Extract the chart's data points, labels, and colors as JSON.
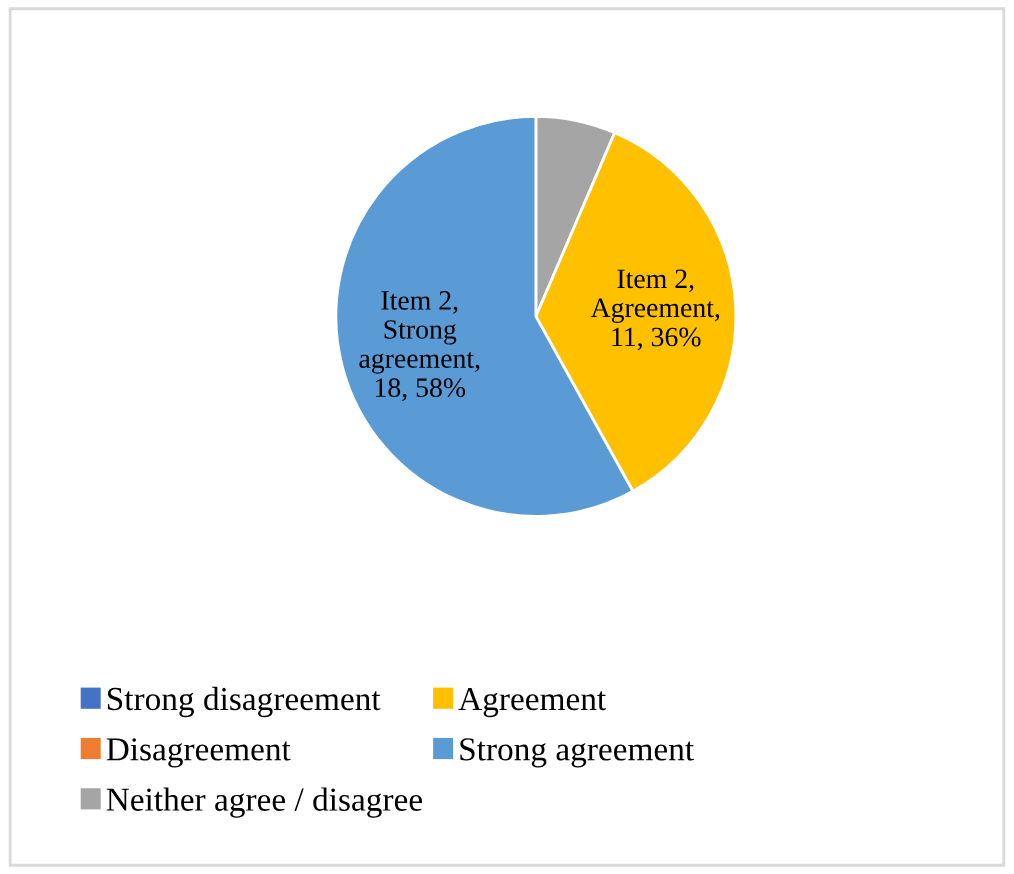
{
  "chart_data": {
    "type": "pie",
    "categories": [
      "Strong disagreement",
      "Disagreement",
      "Neither agree / disagree",
      "Agreement",
      "Strong agreement"
    ],
    "values": [
      0,
      0,
      2,
      11,
      18
    ],
    "colors": [
      "#4472c4",
      "#ed7d31",
      "#a5a5a5",
      "#ffc000",
      "#5b9bd5"
    ],
    "value_labels": [
      null,
      null,
      null,
      "Item 2,\nAgreement,\n11, 36%",
      "Item 2,\nStrong\nagreement,\n18, 58%"
    ],
    "legend": "bottom"
  }
}
